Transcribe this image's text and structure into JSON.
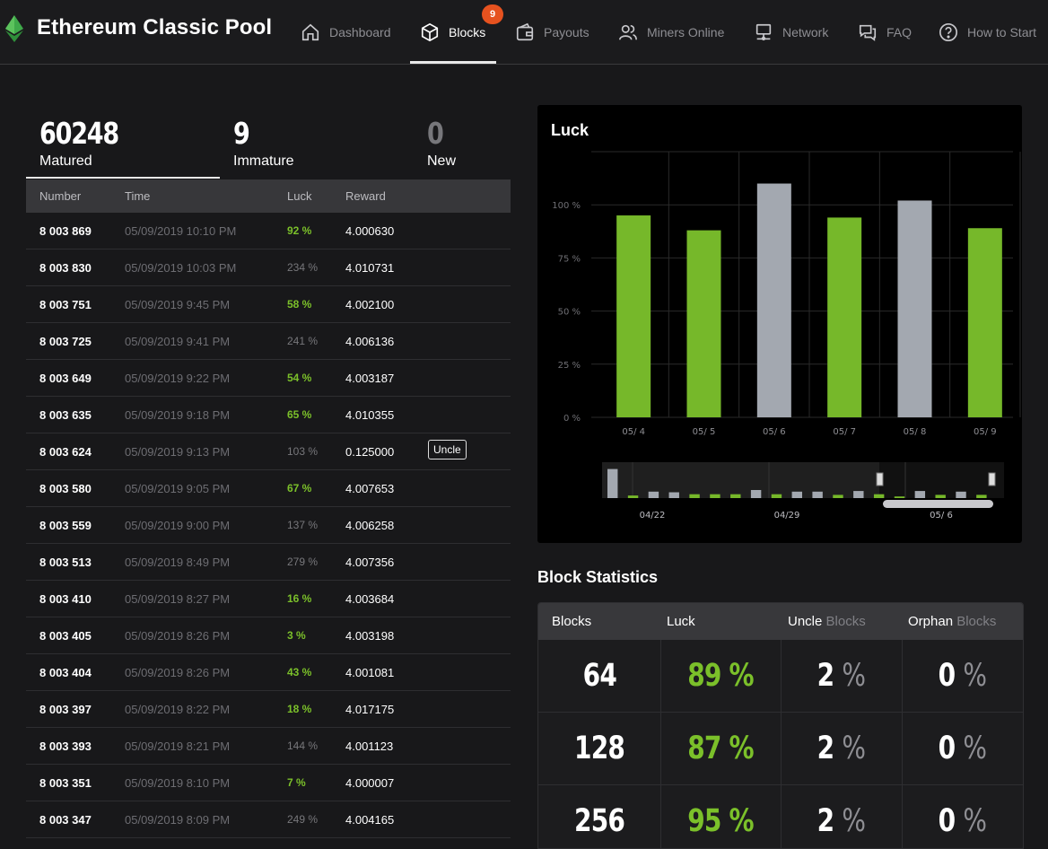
{
  "brand": "Ethereum Classic Pool",
  "nav": {
    "dashboard": "Dashboard",
    "blocks": "Blocks",
    "blocks_badge": "9",
    "payouts": "Payouts",
    "miners": "Miners Online",
    "network": "Network",
    "faq": "FAQ",
    "start": "How to Start"
  },
  "summary": {
    "matured": {
      "value": "60248",
      "label": "Matured"
    },
    "immature": {
      "value": "9",
      "label": "Immature"
    },
    "new": {
      "value": "0",
      "label": "New"
    }
  },
  "table": {
    "headers": {
      "number": "Number",
      "time": "Time",
      "luck": "Luck",
      "reward": "Reward"
    },
    "rows": [
      {
        "number": "8 003 869",
        "time": "05/09/2019 10:10 PM",
        "luck": "92 %",
        "reward": "4.000630",
        "good": true
      },
      {
        "number": "8 003 830",
        "time": "05/09/2019 10:03 PM",
        "luck": "234 %",
        "reward": "4.010731",
        "good": false
      },
      {
        "number": "8 003 751",
        "time": "05/09/2019 9:45 PM",
        "luck": "58 %",
        "reward": "4.002100",
        "good": true
      },
      {
        "number": "8 003 725",
        "time": "05/09/2019 9:41 PM",
        "luck": "241 %",
        "reward": "4.006136",
        "good": false
      },
      {
        "number": "8 003 649",
        "time": "05/09/2019 9:22 PM",
        "luck": "54 %",
        "reward": "4.003187",
        "good": true
      },
      {
        "number": "8 003 635",
        "time": "05/09/2019 9:18 PM",
        "luck": "65 %",
        "reward": "4.010355",
        "good": true
      },
      {
        "number": "8 003 624",
        "time": "05/09/2019 9:13 PM",
        "luck": "103 %",
        "reward": "0.125000",
        "good": false,
        "tag": "Uncle"
      },
      {
        "number": "8 003 580",
        "time": "05/09/2019 9:05 PM",
        "luck": "67 %",
        "reward": "4.007653",
        "good": true
      },
      {
        "number": "8 003 559",
        "time": "05/09/2019 9:00 PM",
        "luck": "137 %",
        "reward": "4.006258",
        "good": false
      },
      {
        "number": "8 003 513",
        "time": "05/09/2019 8:49 PM",
        "luck": "279 %",
        "reward": "4.007356",
        "good": false
      },
      {
        "number": "8 003 410",
        "time": "05/09/2019 8:27 PM",
        "luck": "16 %",
        "reward": "4.003684",
        "good": true
      },
      {
        "number": "8 003 405",
        "time": "05/09/2019 8:26 PM",
        "luck": "3 %",
        "reward": "4.003198",
        "good": true
      },
      {
        "number": "8 003 404",
        "time": "05/09/2019 8:26 PM",
        "luck": "43 %",
        "reward": "4.001081",
        "good": true
      },
      {
        "number": "8 003 397",
        "time": "05/09/2019 8:22 PM",
        "luck": "18 %",
        "reward": "4.017175",
        "good": true
      },
      {
        "number": "8 003 393",
        "time": "05/09/2019 8:21 PM",
        "luck": "144 %",
        "reward": "4.001123",
        "good": false
      },
      {
        "number": "8 003 351",
        "time": "05/09/2019 8:10 PM",
        "luck": "7 %",
        "reward": "4.000007",
        "good": true
      },
      {
        "number": "8 003 347",
        "time": "05/09/2019 8:09 PM",
        "luck": "249 %",
        "reward": "4.004165",
        "good": false
      }
    ]
  },
  "luck_title": "Luck",
  "chart_data": {
    "type": "bar",
    "title": "Luck",
    "categories": [
      "05/ 4",
      "05/ 5",
      "05/ 6",
      "05/ 7",
      "05/ 8",
      "05/ 9"
    ],
    "values": [
      95,
      88,
      110,
      94,
      102,
      89
    ],
    "colors": [
      "#76b82a",
      "#76b82a",
      "#a3a8b0",
      "#76b82a",
      "#a3a8b0",
      "#76b82a"
    ],
    "yticks": [
      "0 %",
      "25 %",
      "50 %",
      "75 %",
      "100 %"
    ],
    "ylim": [
      0,
      125
    ],
    "grid": true,
    "navigator": {
      "labels": [
        "04/22",
        "04/29",
        "05/ 6"
      ],
      "values": [
        90,
        8,
        20,
        18,
        12,
        12,
        12,
        25,
        12,
        20,
        20,
        10,
        22,
        12,
        5,
        22,
        10,
        20,
        10
      ],
      "colors": [
        "#a3a8b0",
        "#76b82a",
        "#a3a8b0",
        "#a3a8b0",
        "#76b82a",
        "#76b82a",
        "#76b82a",
        "#a3a8b0",
        "#76b82a",
        "#a3a8b0",
        "#a3a8b0",
        "#76b82a",
        "#a3a8b0",
        "#76b82a",
        "#76b82a",
        "#a3a8b0",
        "#76b82a",
        "#a3a8b0",
        "#76b82a"
      ]
    }
  },
  "block_stats": {
    "title": "Block Statistics",
    "headers": {
      "blocks": "Blocks",
      "luck": "Luck",
      "uncle_a": "Uncle",
      "uncle_b": "Blocks",
      "orphan_a": "Orphan",
      "orphan_b": "Blocks"
    },
    "rows": [
      {
        "blocks": "64",
        "luck": "89 %",
        "uncle": "2",
        "orphan": "0"
      },
      {
        "blocks": "128",
        "luck": "87 %",
        "uncle": "2",
        "orphan": "0"
      },
      {
        "blocks": "256",
        "luck": "95 %",
        "uncle": "2",
        "orphan": "0"
      }
    ],
    "pct_sign": "%"
  },
  "colors": {
    "accent_green": "#7bc02a",
    "badge": "#e6521f",
    "bar_gray": "#a3a8b0"
  }
}
